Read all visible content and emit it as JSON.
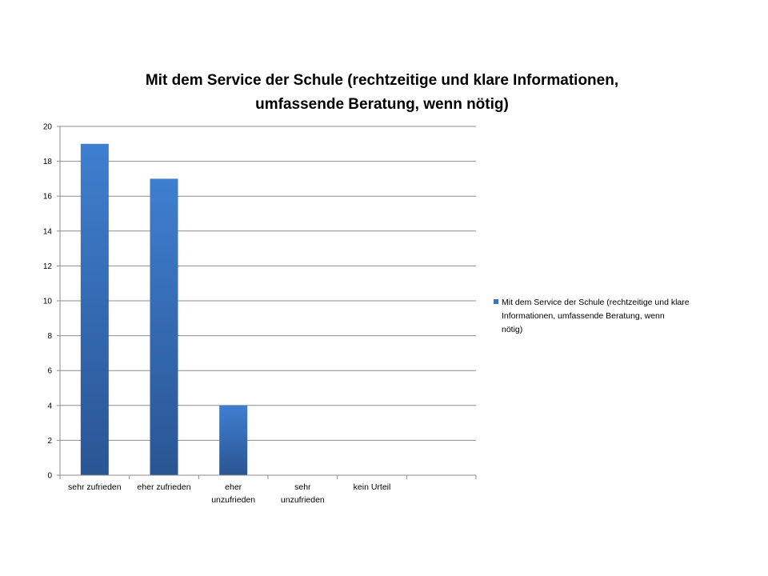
{
  "chart_data": {
    "type": "bar",
    "title_lines": [
      "Mit dem Service der Schule (rechtzeitige und klare Informationen,",
      "umfassende Beratung, wenn nötig)"
    ],
    "categories": [
      "sehr zufrieden",
      "eher zufrieden",
      "eher unzufrieden",
      "sehr unzufrieden",
      "kein Urteil"
    ],
    "category_label_lines": [
      [
        "sehr zufrieden"
      ],
      [
        "eher zufrieden"
      ],
      [
        "eher",
        "unzufrieden"
      ],
      [
        "sehr",
        "unzufrieden"
      ],
      [
        "kein Urteil"
      ]
    ],
    "series": [
      {
        "name": "Mit dem Service der Schule (rechtzeitige und klare Informationen, umfassende Beratung, wenn nötig)",
        "values": [
          19,
          17,
          4,
          0,
          0
        ],
        "color_top": "#3f7fd0",
        "color_bottom": "#2a5593"
      }
    ],
    "ylim": [
      0,
      20
    ],
    "yticks": [
      0,
      2,
      4,
      6,
      8,
      10,
      12,
      14,
      16,
      18,
      20
    ],
    "grid": true,
    "legend_position": "right",
    "xlabel": "",
    "ylabel": ""
  },
  "legend": {
    "lines": [
      "Mit dem Service der Schule (rechtzeitige und klare",
      "Informationen, umfassende Beratung, wenn",
      "nötig)"
    ],
    "color": "#3a74c4"
  }
}
